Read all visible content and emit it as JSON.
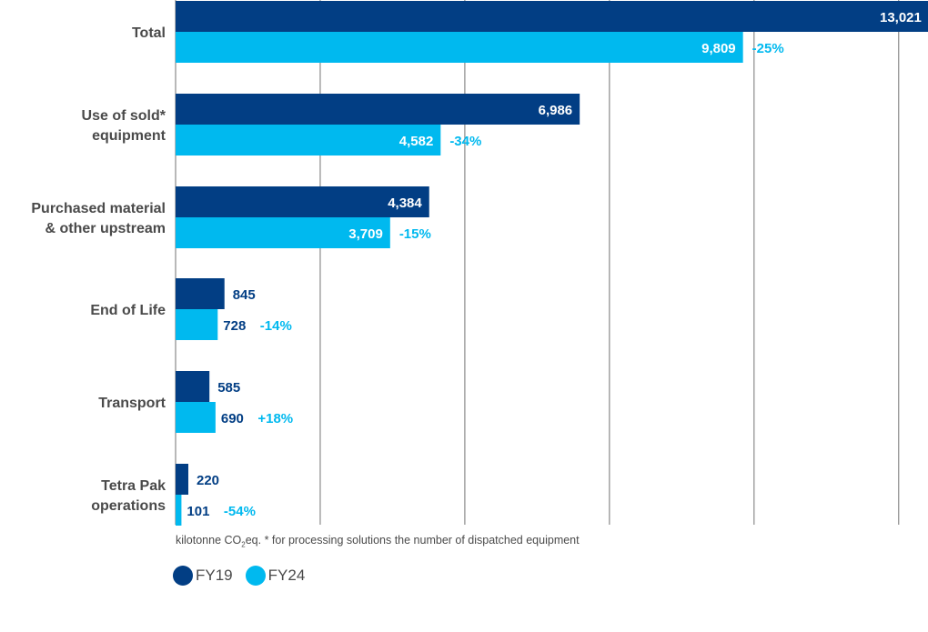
{
  "chart_data": {
    "type": "bar",
    "orientation": "horizontal",
    "title": "",
    "xlabel": "",
    "ylabel": "",
    "xlim": [
      0,
      13021
    ],
    "gridlines": [
      2500,
      5000,
      7500,
      10000,
      12500
    ],
    "grid": true,
    "categories": [
      "Total",
      "Use of sold* equipment",
      "Purchased material & other upstream",
      "End of Life",
      "Transport",
      "Tetra Pak operations"
    ],
    "category_lines": [
      [
        "Total"
      ],
      [
        "Use of sold*",
        "equipment"
      ],
      [
        "Purchased material",
        "&  other upstream"
      ],
      [
        "End of Life"
      ],
      [
        "Transport"
      ],
      [
        "Tetra Pak",
        "operations"
      ]
    ],
    "series": [
      {
        "name": "FY19",
        "color": "#023e84",
        "values": [
          13021,
          6986,
          4384,
          845,
          585,
          220
        ],
        "labels": [
          "13,021",
          "6,986",
          "4,384",
          "845",
          "585",
          "220"
        ]
      },
      {
        "name": "FY24",
        "color": "#00b9ef",
        "values": [
          9809,
          4582,
          3709,
          728,
          690,
          101
        ],
        "labels": [
          "9,809",
          "4,582",
          "3,709",
          "728",
          "690",
          "101"
        ]
      }
    ],
    "change_labels": [
      "-25%",
      "-34%",
      "-15%",
      "-14%",
      "+18%",
      "-54%"
    ],
    "legend_position": "bottom-left"
  },
  "footnote": {
    "prefix": "kilotonne CO",
    "subscript": "2",
    "suffix": "eq. * for processing solutions the number of dispatched equipment"
  },
  "legend": [
    {
      "label": "FY19",
      "color": "#023e84"
    },
    {
      "label": "FY24",
      "color": "#00b9ef"
    }
  ]
}
